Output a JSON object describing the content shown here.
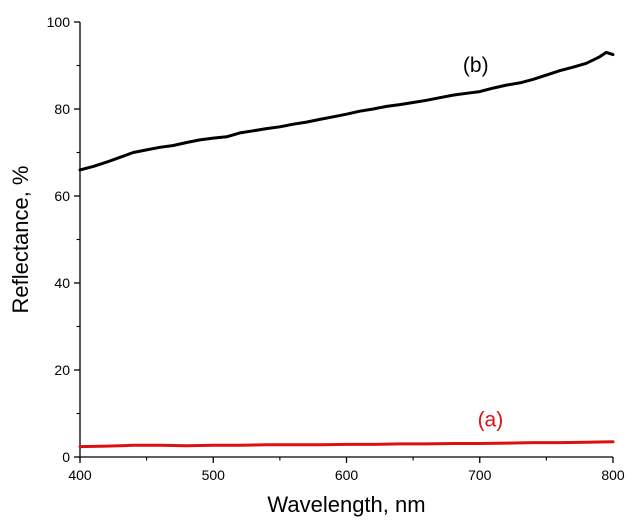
{
  "chart_data": {
    "type": "line",
    "xlabel": "Wavelength, nm",
    "ylabel": "Reflectance, %",
    "xlim": [
      400,
      800
    ],
    "ylim": [
      0,
      100
    ],
    "x_ticks": [
      400,
      500,
      600,
      700,
      800
    ],
    "y_ticks": [
      0,
      20,
      40,
      60,
      80,
      100
    ],
    "x_tick_labels": [
      "400",
      "500",
      "600",
      "700",
      "800"
    ],
    "y_tick_labels": [
      "0",
      "20",
      "40",
      "60",
      "80",
      "100"
    ],
    "grid": false,
    "legend": "none",
    "series": [
      {
        "label": "(a)",
        "color": "#dd1111",
        "label_at": [
          708,
          7
        ],
        "x": [
          400,
          420,
          440,
          460,
          480,
          500,
          520,
          540,
          560,
          580,
          600,
          620,
          640,
          660,
          680,
          700,
          720,
          740,
          760,
          780,
          800
        ],
        "y": [
          2.4,
          2.5,
          2.7,
          2.7,
          2.6,
          2.7,
          2.7,
          2.8,
          2.8,
          2.8,
          2.9,
          2.9,
          3.0,
          3.0,
          3.1,
          3.1,
          3.2,
          3.3,
          3.3,
          3.4,
          3.5
        ]
      },
      {
        "label": "(b)",
        "color": "#000000",
        "label_at": [
          697,
          88.5
        ],
        "x": [
          400,
          410,
          420,
          430,
          440,
          450,
          460,
          470,
          480,
          490,
          500,
          510,
          520,
          530,
          540,
          550,
          560,
          570,
          580,
          590,
          600,
          610,
          620,
          630,
          640,
          650,
          660,
          670,
          680,
          690,
          700,
          710,
          720,
          730,
          740,
          750,
          760,
          770,
          780,
          790,
          795,
          800
        ],
        "y": [
          66.0,
          66.8,
          67.8,
          68.9,
          70.0,
          70.6,
          71.2,
          71.6,
          72.3,
          72.9,
          73.3,
          73.6,
          74.5,
          75.0,
          75.5,
          75.9,
          76.5,
          77.0,
          77.6,
          78.2,
          78.8,
          79.5,
          80.0,
          80.6,
          81.0,
          81.5,
          82.0,
          82.6,
          83.2,
          83.6,
          84.0,
          84.8,
          85.5,
          86.0,
          86.8,
          87.8,
          88.8,
          89.6,
          90.5,
          92.0,
          93.0,
          92.5
        ]
      }
    ]
  }
}
